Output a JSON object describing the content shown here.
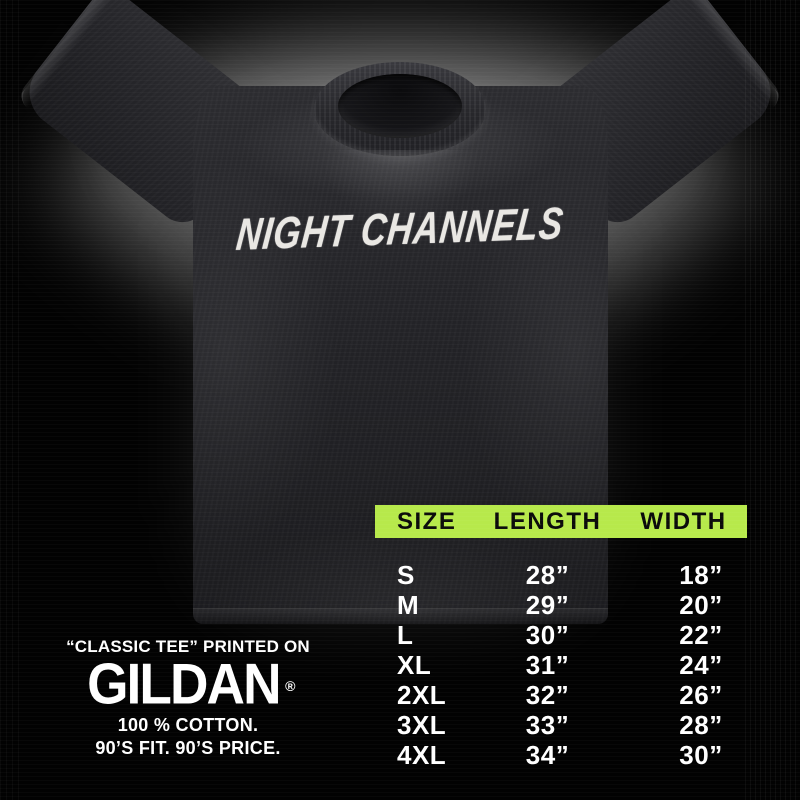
{
  "colors": {
    "accent_green": "#b7e94b",
    "background": "#000000",
    "shirt_fabric": "#232327",
    "table_text": "#ffffff",
    "header_text": "#0b0b0b"
  },
  "shirt": {
    "print_text": "NIGHT CHANNELS"
  },
  "size_chart": {
    "headers": [
      "SIZE",
      "LENGTH",
      "WIDTH"
    ],
    "rows": [
      {
        "size": "S",
        "length": "28”",
        "width": "18”"
      },
      {
        "size": "M",
        "length": "29”",
        "width": "20”"
      },
      {
        "size": "L",
        "length": "30”",
        "width": "22”"
      },
      {
        "size": "XL",
        "length": "31”",
        "width": "24”"
      },
      {
        "size": "2XL",
        "length": "32”",
        "width": "26”"
      },
      {
        "size": "3XL",
        "length": "33”",
        "width": "28”"
      },
      {
        "size": "4XL",
        "length": "34”",
        "width": "30”"
      }
    ]
  },
  "brand": {
    "tagline": "“CLASSIC TEE” PRINTED ON",
    "logo": "GILDAN",
    "registered_mark": "®",
    "cotton_line": "100 % COTTON.",
    "fit_line": "90’S FIT. 90’S PRICE."
  }
}
